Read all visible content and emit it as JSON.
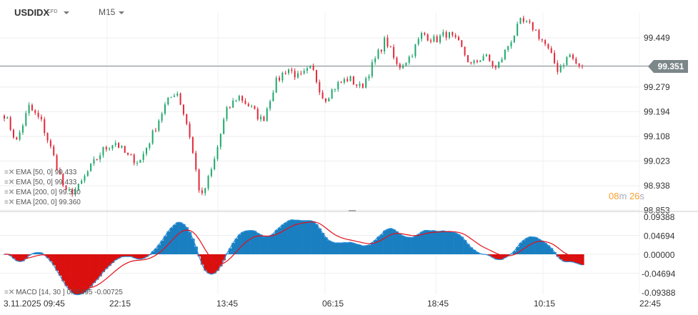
{
  "header": {
    "symbol": "USDIDX",
    "symbol_type": "CFD",
    "timeframe": "M15"
  },
  "price_tag": "99.351",
  "timer": {
    "minutes": "08",
    "m": "m",
    "seconds": "26",
    "s": "s"
  },
  "legend": [
    "EMA  [50,  0]  99.433",
    "EMA  [50,  0]  99.433",
    "EMA  [200,  0]  99.310",
    "EMA  [200,  0]  99.360"
  ],
  "macd_legend": "MACD   [14, 30  ]  0.01495   -0.00725",
  "colors": {
    "up": "#1fa86c",
    "down": "#e2283a",
    "macd_pos": "#1a7fc1",
    "macd_neg": "#d9100e",
    "macd_line": "#2a8fd8",
    "signal_line": "#e2101a",
    "last_price": "#7c878a"
  },
  "chart_data": [
    {
      "type": "candlestick",
      "title": "USDIDX",
      "price_axis": [
        "99.449",
        "99.279",
        "99.194",
        "99.108",
        "99.023",
        "98.938",
        "98.853"
      ],
      "ylim": [
        98.853,
        99.519
      ],
      "time_axis": [
        "3.11.2025  09:45",
        "22:15",
        "13:45",
        "06:15",
        "18:45",
        "10:15",
        "22:45"
      ],
      "close_anchors": [
        99.185,
        99.09,
        99.21,
        99.16,
        99.04,
        98.91,
        98.93,
        99.0,
        99.06,
        99.09,
        99.04,
        99.02,
        99.11,
        99.21,
        99.27,
        99.13,
        98.89,
        99.01,
        99.19,
        99.25,
        99.21,
        99.16,
        99.29,
        99.345,
        99.31,
        99.345,
        99.235,
        99.285,
        99.31,
        99.275,
        99.36,
        99.445,
        99.345,
        99.385,
        99.465,
        99.44,
        99.465,
        99.425,
        99.351,
        99.39,
        99.34,
        99.425,
        99.505,
        99.485,
        99.425,
        99.34,
        99.39,
        99.33
      ],
      "last": 99.351
    },
    {
      "type": "macd",
      "params": [
        14,
        30
      ],
      "values": [
        "0.01495",
        "-0.00725"
      ],
      "axis": [
        "0.09388",
        "0.04694",
        "0.00000",
        "-0.04694",
        "-0.09388"
      ],
      "ylim": [
        -0.09388,
        0.09388
      ]
    }
  ]
}
